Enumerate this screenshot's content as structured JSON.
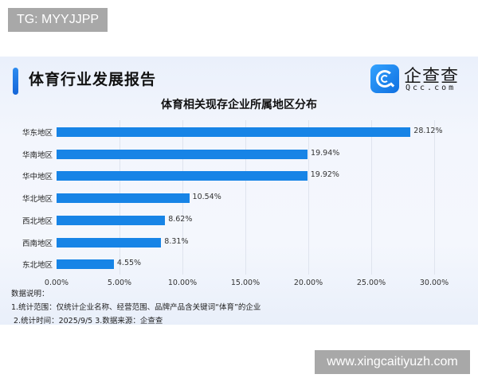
{
  "watermarks": {
    "top": "TG: MYYJJPP",
    "bottom": "www.xingcaitiyuzh.com"
  },
  "header": {
    "title": "体育行业发展报告",
    "logo": {
      "name": "企查查",
      "url": "Qcc.com",
      "icon": "qcc-logo-icon"
    }
  },
  "colors": {
    "bar": "#1784e6",
    "accent": "#1565d8"
  },
  "chart_data": {
    "type": "bar",
    "orientation": "horizontal",
    "title": "体育相关现存企业所属地区分布",
    "categories": [
      "华东地区",
      "华南地区",
      "华中地区",
      "华北地区",
      "西北地区",
      "西南地区",
      "东北地区"
    ],
    "values": [
      28.12,
      19.94,
      19.92,
      10.54,
      8.62,
      8.31,
      4.55
    ],
    "value_labels": [
      "28.12%",
      "19.94%",
      "19.92%",
      "10.54%",
      "8.62%",
      "8.31%",
      "4.55%"
    ],
    "xlabel": "",
    "ylabel": "",
    "xlim": [
      0,
      30
    ],
    "x_ticks": [
      "0.00%",
      "5.00%",
      "10.00%",
      "15.00%",
      "20.00%",
      "25.00%",
      "30.00%"
    ],
    "grid": "vertical",
    "legend": "none"
  },
  "notes": {
    "heading": "数据说明：",
    "line1": "1.统计范围：仅统计企业名称、经营范围、品牌产品含关键词“体育”的企业",
    "line2": "2.统计时间：2025/9/5  3.数据来源：企查查"
  }
}
